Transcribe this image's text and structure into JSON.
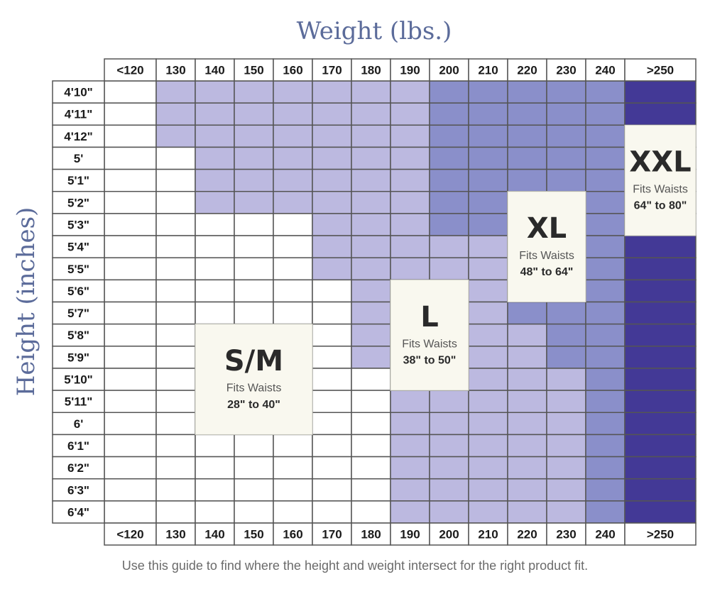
{
  "chart_data": {
    "type": "heatmap",
    "title": "Weight (lbs.)",
    "xlabel": "Weight (lbs.)",
    "ylabel": "Height (inches)",
    "x_categories": [
      "<120",
      "130",
      "140",
      "150",
      "160",
      "170",
      "180",
      "190",
      "200",
      "210",
      "220",
      "230",
      "240",
      ">250"
    ],
    "y_categories": [
      "4'10\"",
      "4'11\"",
      "4'12\"",
      "5'",
      "5'1\"",
      "5'2\"",
      "5'3\"",
      "5'4\"",
      "5'5\"",
      "5'6\"",
      "5'7\"",
      "5'8\"",
      "5'9\"",
      "5'10\"",
      "5'11\"",
      "6'",
      "6'1\"",
      "6'2\"",
      "6'3\"",
      "6'4\""
    ],
    "size_levels": [
      "S/M",
      "L",
      "XL",
      "XXL"
    ],
    "colors": {
      "S/M": "#ffffff",
      "L": "#bcb9e0",
      "XL": "#8a8fca",
      "XXL": "#433996",
      "grid": "#555555",
      "title": "#5b6b9a",
      "box": "#f9f8ef"
    },
    "grid": [
      [
        "S/M",
        "L",
        "L",
        "L",
        "L",
        "L",
        "L",
        "L",
        "XL",
        "XL",
        "XL",
        "XL",
        "XL",
        "XXL"
      ],
      [
        "S/M",
        "L",
        "L",
        "L",
        "L",
        "L",
        "L",
        "L",
        "XL",
        "XL",
        "XL",
        "XL",
        "XL",
        "XXL"
      ],
      [
        "S/M",
        "L",
        "L",
        "L",
        "L",
        "L",
        "L",
        "L",
        "XL",
        "XL",
        "XL",
        "XL",
        "XL",
        "XXL"
      ],
      [
        "S/M",
        "S/M",
        "L",
        "L",
        "L",
        "L",
        "L",
        "L",
        "XL",
        "XL",
        "XL",
        "XL",
        "XL",
        "XXL"
      ],
      [
        "S/M",
        "S/M",
        "L",
        "L",
        "L",
        "L",
        "L",
        "L",
        "XL",
        "XL",
        "XL",
        "XL",
        "XL",
        "XXL"
      ],
      [
        "S/M",
        "S/M",
        "L",
        "L",
        "L",
        "L",
        "L",
        "L",
        "XL",
        "XL",
        "XL",
        "XL",
        "XL",
        "XXL"
      ],
      [
        "S/M",
        "S/M",
        "S/M",
        "S/M",
        "S/M",
        "L",
        "L",
        "L",
        "XL",
        "XL",
        "XL",
        "XL",
        "XL",
        "XXL"
      ],
      [
        "S/M",
        "S/M",
        "S/M",
        "S/M",
        "S/M",
        "L",
        "L",
        "L",
        "L",
        "L",
        "XL",
        "XL",
        "XL",
        "XXL"
      ],
      [
        "S/M",
        "S/M",
        "S/M",
        "S/M",
        "S/M",
        "L",
        "L",
        "L",
        "L",
        "L",
        "XL",
        "XL",
        "XL",
        "XXL"
      ],
      [
        "S/M",
        "S/M",
        "S/M",
        "S/M",
        "S/M",
        "S/M",
        "L",
        "L",
        "L",
        "L",
        "XL",
        "XL",
        "XL",
        "XXL"
      ],
      [
        "S/M",
        "S/M",
        "S/M",
        "S/M",
        "S/M",
        "S/M",
        "L",
        "L",
        "L",
        "L",
        "XL",
        "XL",
        "XL",
        "XXL"
      ],
      [
        "S/M",
        "S/M",
        "S/M",
        "S/M",
        "S/M",
        "S/M",
        "L",
        "L",
        "L",
        "L",
        "L",
        "XL",
        "XL",
        "XXL"
      ],
      [
        "S/M",
        "S/M",
        "S/M",
        "S/M",
        "S/M",
        "S/M",
        "L",
        "L",
        "L",
        "L",
        "L",
        "XL",
        "XL",
        "XXL"
      ],
      [
        "S/M",
        "S/M",
        "S/M",
        "S/M",
        "S/M",
        "S/M",
        "S/M",
        "L",
        "L",
        "L",
        "L",
        "L",
        "XL",
        "XXL"
      ],
      [
        "S/M",
        "S/M",
        "S/M",
        "S/M",
        "S/M",
        "S/M",
        "S/M",
        "L",
        "L",
        "L",
        "L",
        "L",
        "XL",
        "XXL"
      ],
      [
        "S/M",
        "S/M",
        "S/M",
        "S/M",
        "S/M",
        "S/M",
        "S/M",
        "L",
        "L",
        "L",
        "L",
        "L",
        "XL",
        "XXL"
      ],
      [
        "S/M",
        "S/M",
        "S/M",
        "S/M",
        "S/M",
        "S/M",
        "S/M",
        "L",
        "L",
        "L",
        "L",
        "L",
        "XL",
        "XXL"
      ],
      [
        "S/M",
        "S/M",
        "S/M",
        "S/M",
        "S/M",
        "S/M",
        "S/M",
        "L",
        "L",
        "L",
        "L",
        "L",
        "XL",
        "XXL"
      ],
      [
        "S/M",
        "S/M",
        "S/M",
        "S/M",
        "S/M",
        "S/M",
        "S/M",
        "L",
        "L",
        "L",
        "L",
        "L",
        "XL",
        "XXL"
      ],
      [
        "S/M",
        "S/M",
        "S/M",
        "S/M",
        "S/M",
        "S/M",
        "S/M",
        "L",
        "L",
        "L",
        "L",
        "L",
        "XL",
        "XXL"
      ]
    ],
    "annotations": [
      {
        "size": "S/M",
        "label": "S/M",
        "fits": "Fits Waists",
        "range": "28\" to 40\""
      },
      {
        "size": "L",
        "label": "L",
        "fits": "Fits Waists",
        "range": "38\" to 50\""
      },
      {
        "size": "XL",
        "label": "XL",
        "fits": "Fits Waists",
        "range": "48\" to 64\""
      },
      {
        "size": "XXL",
        "label": "XXL",
        "fits": "Fits Waists",
        "range": "64\" to 80\""
      }
    ]
  },
  "caption": "Use this guide to find where the height and weight intersect for the right product fit."
}
